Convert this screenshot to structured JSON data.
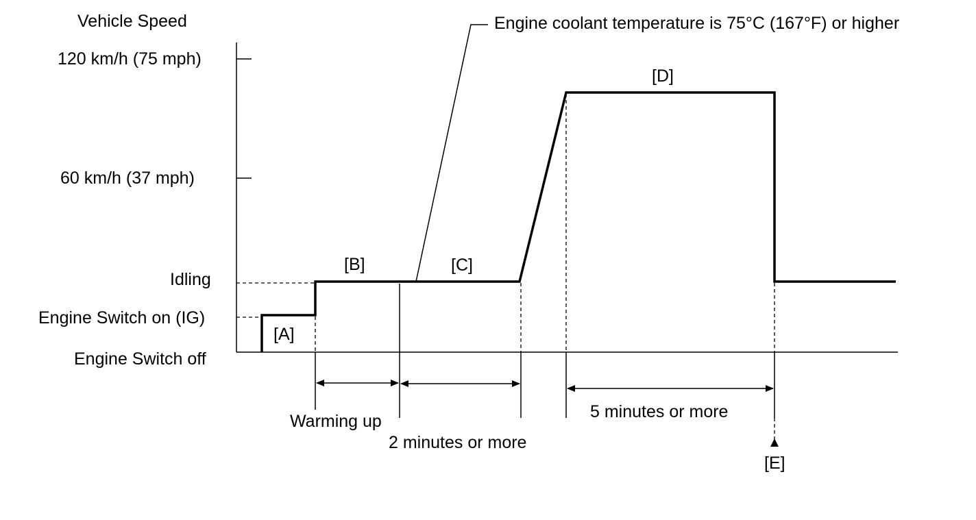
{
  "diagram": {
    "y_axis_title": "Vehicle Speed",
    "y_levels": {
      "speed_120": "120 km/h (75 mph)",
      "speed_60": "60 km/h (37 mph)",
      "idling": "Idling",
      "switch_on": "Engine Switch on (IG)",
      "switch_off": "Engine Switch off"
    },
    "callout": "Engine coolant temperature is 75°C (167°F) or higher",
    "phase_labels": {
      "a": "[A]",
      "b": "[B]",
      "c": "[C]",
      "d": "[D]",
      "e": "[E]"
    },
    "durations": {
      "warming_up": "Warming up",
      "two_minutes": "2 minutes or more",
      "five_minutes": "5 minutes or more"
    }
  }
}
